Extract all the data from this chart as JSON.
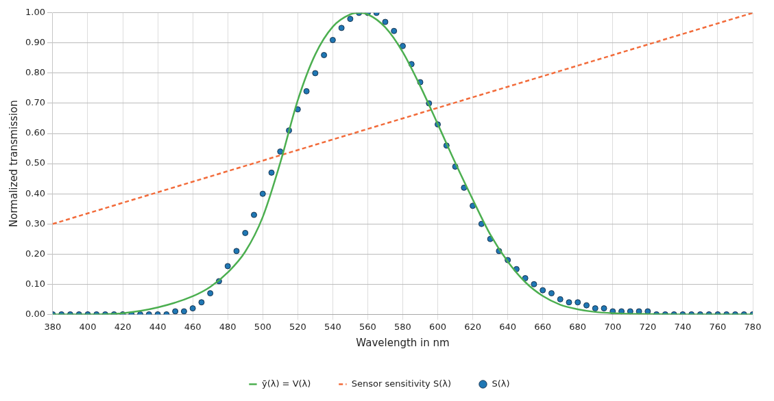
{
  "chart_data": {
    "type": "line",
    "xlabel": "Wavelength in nm",
    "ylabel": "Normalized transmission",
    "xlim": [
      380,
      780
    ],
    "xticks": [
      380,
      400,
      420,
      440,
      460,
      480,
      500,
      520,
      540,
      560,
      580,
      600,
      620,
      640,
      660,
      680,
      700,
      720,
      740,
      760,
      780
    ],
    "ylim": [
      0,
      1
    ],
    "yticks": [
      {
        "value": 0,
        "label": "0.00"
      },
      {
        "value": 0.1,
        "label": "0.10"
      },
      {
        "value": 0.2,
        "label": "0.20"
      },
      {
        "value": 0.3,
        "label": "0.30"
      },
      {
        "value": 0.4,
        "label": "0.40"
      },
      {
        "value": 0.5,
        "label": "0.50"
      },
      {
        "value": 0.6,
        "label": "0.60"
      },
      {
        "value": 0.7,
        "label": "0.70"
      },
      {
        "value": 0.8,
        "label": "0.80"
      },
      {
        "value": 0.9,
        "label": "0.90"
      },
      {
        "value": 1,
        "label": "1.00"
      }
    ],
    "grid": true,
    "legend": "bottom",
    "series": [
      {
        "name": "ȳ(λ) = V(λ)",
        "color": "#4caf50",
        "marker": "none",
        "line_style": "solid",
        "x": [
          380,
          400,
          420,
          440,
          460,
          470,
          480,
          490,
          500,
          510,
          520,
          530,
          540,
          550,
          555,
          560,
          570,
          580,
          590,
          600,
          610,
          620,
          630,
          640,
          650,
          660,
          670,
          680,
          690,
          700,
          720,
          740,
          760,
          780
        ],
        "values": [
          0,
          0,
          0.004,
          0.023,
          0.06,
          0.091,
          0.139,
          0.208,
          0.323,
          0.503,
          0.71,
          0.862,
          0.954,
          0.995,
          1,
          0.995,
          0.952,
          0.87,
          0.757,
          0.631,
          0.503,
          0.381,
          0.265,
          0.175,
          0.107,
          0.061,
          0.032,
          0.017,
          0.008,
          0.004,
          0.001,
          0,
          0,
          0
        ]
      },
      {
        "name": "Sensor sensitivity S(λ)",
        "color": "#f26b3a",
        "marker": "none",
        "line_style": "dashed",
        "x": [
          380,
          780
        ],
        "values": [
          0.3,
          1
        ]
      },
      {
        "name": "S(λ)",
        "type": "scatter",
        "color": "#1f77b4",
        "marker": "circle",
        "x": [
          380,
          385,
          390,
          395,
          400,
          405,
          410,
          415,
          420,
          425,
          430,
          435,
          440,
          445,
          450,
          455,
          460,
          465,
          470,
          475,
          480,
          485,
          490,
          495,
          500,
          505,
          510,
          515,
          520,
          525,
          530,
          535,
          540,
          545,
          550,
          555,
          560,
          565,
          570,
          575,
          580,
          585,
          590,
          595,
          600,
          605,
          610,
          615,
          620,
          625,
          630,
          635,
          640,
          645,
          650,
          655,
          660,
          665,
          670,
          675,
          680,
          685,
          690,
          695,
          700,
          705,
          710,
          715,
          720,
          725,
          730,
          735,
          740,
          745,
          750,
          755,
          760,
          765,
          770,
          775,
          780
        ],
        "values": [
          0,
          0,
          0,
          0,
          0,
          0,
          0,
          0,
          0,
          0,
          0,
          0,
          0,
          0,
          0.01,
          0.01,
          0.02,
          0.04,
          0.07,
          0.11,
          0.16,
          0.21,
          0.27,
          0.33,
          0.4,
          0.47,
          0.54,
          0.61,
          0.68,
          0.74,
          0.8,
          0.86,
          0.91,
          0.95,
          0.98,
          1,
          1,
          1,
          0.97,
          0.94,
          0.89,
          0.83,
          0.77,
          0.7,
          0.63,
          0.56,
          0.49,
          0.42,
          0.36,
          0.3,
          0.25,
          0.21,
          0.18,
          0.15,
          0.12,
          0.1,
          0.08,
          0.07,
          0.05,
          0.04,
          0.04,
          0.03,
          0.02,
          0.02,
          0.01,
          0.01,
          0.01,
          0.01,
          0.01,
          0,
          0,
          0,
          0,
          0,
          0,
          0,
          0,
          0,
          0,
          0,
          0
        ]
      }
    ]
  }
}
